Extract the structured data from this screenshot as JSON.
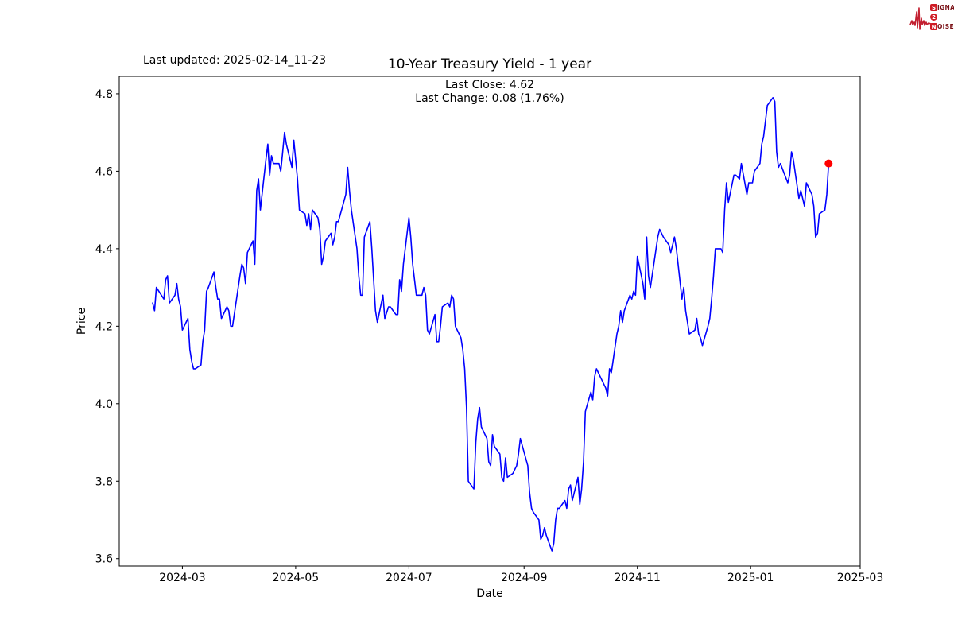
{
  "header": {
    "last_updated": "Last updated: 2025-02-14_11-23"
  },
  "logo": {
    "signal_first": "S",
    "signal_rest": "IGNAL",
    "middle": "2",
    "noise_first": "N",
    "noise_rest": "OISE",
    "waveform_icon": "ekg-heartbeat-icon",
    "waveform_color": "#c32031",
    "badge_color": "#cf1b24",
    "word_color": "#7a1116"
  },
  "chart": {
    "title": "10-Year Treasury Yield - 1 year",
    "subtitle_line1": "Last Close: 4.62",
    "subtitle_line2": "Last Change: 0.08 (1.76%)",
    "xlabel": "Date",
    "ylabel": "Price",
    "line_color": "#0000ff",
    "marker_color": "#ff0000",
    "axis_color": "#000000"
  },
  "chart_data": {
    "type": "line",
    "title": "10-Year Treasury Yield - 1 year",
    "series_name": "10-Year Treasury Yield",
    "xlabel": "Date",
    "ylabel": "Price",
    "last_close": 4.62,
    "last_change": 0.08,
    "last_change_pct": 1.76,
    "xlim": [
      "2024-01-27",
      "2025-03-01"
    ],
    "ylim": [
      3.581,
      4.845
    ],
    "grid": false,
    "x_ticks": [
      {
        "date": "2024-03-01",
        "label": "2024-03"
      },
      {
        "date": "2024-05-01",
        "label": "2024-05"
      },
      {
        "date": "2024-07-01",
        "label": "2024-07"
      },
      {
        "date": "2024-09-01",
        "label": "2024-09"
      },
      {
        "date": "2024-11-01",
        "label": "2024-11"
      },
      {
        "date": "2025-01-01",
        "label": "2025-01"
      },
      {
        "date": "2025-03-01",
        "label": "2025-03"
      }
    ],
    "y_ticks": [
      {
        "value": 3.6,
        "label": "3.6"
      },
      {
        "value": 3.8,
        "label": "3.8"
      },
      {
        "value": 4.0,
        "label": "4.0"
      },
      {
        "value": 4.2,
        "label": "4.2"
      },
      {
        "value": 4.4,
        "label": "4.4"
      },
      {
        "value": 4.6,
        "label": "4.6"
      },
      {
        "value": 4.8,
        "label": "4.8"
      }
    ],
    "points": [
      [
        "2024-02-14",
        4.26
      ],
      [
        "2024-02-15",
        4.24
      ],
      [
        "2024-02-16",
        4.3
      ],
      [
        "2024-02-20",
        4.27
      ],
      [
        "2024-02-21",
        4.32
      ],
      [
        "2024-02-22",
        4.33
      ],
      [
        "2024-02-23",
        4.26
      ],
      [
        "2024-02-26",
        4.28
      ],
      [
        "2024-02-27",
        4.31
      ],
      [
        "2024-02-28",
        4.27
      ],
      [
        "2024-02-29",
        4.25
      ],
      [
        "2024-03-01",
        4.19
      ],
      [
        "2024-03-04",
        4.22
      ],
      [
        "2024-03-05",
        4.14
      ],
      [
        "2024-03-06",
        4.11
      ],
      [
        "2024-03-07",
        4.09
      ],
      [
        "2024-03-08",
        4.09
      ],
      [
        "2024-03-11",
        4.1
      ],
      [
        "2024-03-12",
        4.16
      ],
      [
        "2024-03-13",
        4.19
      ],
      [
        "2024-03-14",
        4.29
      ],
      [
        "2024-03-15",
        4.3
      ],
      [
        "2024-03-18",
        4.34
      ],
      [
        "2024-03-19",
        4.3
      ],
      [
        "2024-03-20",
        4.27
      ],
      [
        "2024-03-21",
        4.27
      ],
      [
        "2024-03-22",
        4.22
      ],
      [
        "2024-03-25",
        4.25
      ],
      [
        "2024-03-26",
        4.24
      ],
      [
        "2024-03-27",
        4.2
      ],
      [
        "2024-03-28",
        4.2
      ],
      [
        "2024-04-01",
        4.33
      ],
      [
        "2024-04-02",
        4.36
      ],
      [
        "2024-04-03",
        4.35
      ],
      [
        "2024-04-04",
        4.31
      ],
      [
        "2024-04-05",
        4.39
      ],
      [
        "2024-04-08",
        4.42
      ],
      [
        "2024-04-09",
        4.36
      ],
      [
        "2024-04-10",
        4.55
      ],
      [
        "2024-04-11",
        4.58
      ],
      [
        "2024-04-12",
        4.5
      ],
      [
        "2024-04-15",
        4.63
      ],
      [
        "2024-04-16",
        4.67
      ],
      [
        "2024-04-17",
        4.59
      ],
      [
        "2024-04-18",
        4.64
      ],
      [
        "2024-04-19",
        4.62
      ],
      [
        "2024-04-22",
        4.62
      ],
      [
        "2024-04-23",
        4.6
      ],
      [
        "2024-04-24",
        4.65
      ],
      [
        "2024-04-25",
        4.7
      ],
      [
        "2024-04-26",
        4.67
      ],
      [
        "2024-04-29",
        4.61
      ],
      [
        "2024-04-30",
        4.68
      ],
      [
        "2024-05-01",
        4.63
      ],
      [
        "2024-05-02",
        4.58
      ],
      [
        "2024-05-03",
        4.5
      ],
      [
        "2024-05-06",
        4.49
      ],
      [
        "2024-05-07",
        4.46
      ],
      [
        "2024-05-08",
        4.49
      ],
      [
        "2024-05-09",
        4.45
      ],
      [
        "2024-05-10",
        4.5
      ],
      [
        "2024-05-13",
        4.48
      ],
      [
        "2024-05-14",
        4.45
      ],
      [
        "2024-05-15",
        4.36
      ],
      [
        "2024-05-16",
        4.38
      ],
      [
        "2024-05-17",
        4.42
      ],
      [
        "2024-05-20",
        4.44
      ],
      [
        "2024-05-21",
        4.41
      ],
      [
        "2024-05-22",
        4.43
      ],
      [
        "2024-05-23",
        4.47
      ],
      [
        "2024-05-24",
        4.47
      ],
      [
        "2024-05-28",
        4.54
      ],
      [
        "2024-05-29",
        4.61
      ],
      [
        "2024-05-30",
        4.55
      ],
      [
        "2024-05-31",
        4.5
      ],
      [
        "2024-06-03",
        4.4
      ],
      [
        "2024-06-04",
        4.33
      ],
      [
        "2024-06-05",
        4.28
      ],
      [
        "2024-06-06",
        4.28
      ],
      [
        "2024-06-07",
        4.43
      ],
      [
        "2024-06-10",
        4.47
      ],
      [
        "2024-06-11",
        4.4
      ],
      [
        "2024-06-12",
        4.32
      ],
      [
        "2024-06-13",
        4.24
      ],
      [
        "2024-06-14",
        4.21
      ],
      [
        "2024-06-17",
        4.28
      ],
      [
        "2024-06-18",
        4.22
      ],
      [
        "2024-06-20",
        4.25
      ],
      [
        "2024-06-21",
        4.25
      ],
      [
        "2024-06-24",
        4.23
      ],
      [
        "2024-06-25",
        4.23
      ],
      [
        "2024-06-26",
        4.32
      ],
      [
        "2024-06-27",
        4.29
      ],
      [
        "2024-06-28",
        4.36
      ],
      [
        "2024-07-01",
        4.48
      ],
      [
        "2024-07-02",
        4.43
      ],
      [
        "2024-07-03",
        4.36
      ],
      [
        "2024-07-05",
        4.28
      ],
      [
        "2024-07-08",
        4.28
      ],
      [
        "2024-07-09",
        4.3
      ],
      [
        "2024-07-10",
        4.28
      ],
      [
        "2024-07-11",
        4.19
      ],
      [
        "2024-07-12",
        4.18
      ],
      [
        "2024-07-15",
        4.23
      ],
      [
        "2024-07-16",
        4.16
      ],
      [
        "2024-07-17",
        4.16
      ],
      [
        "2024-07-18",
        4.2
      ],
      [
        "2024-07-19",
        4.25
      ],
      [
        "2024-07-22",
        4.26
      ],
      [
        "2024-07-23",
        4.25
      ],
      [
        "2024-07-24",
        4.28
      ],
      [
        "2024-07-25",
        4.27
      ],
      [
        "2024-07-26",
        4.2
      ],
      [
        "2024-07-29",
        4.17
      ],
      [
        "2024-07-30",
        4.14
      ],
      [
        "2024-07-31",
        4.09
      ],
      [
        "2024-08-01",
        3.99
      ],
      [
        "2024-08-02",
        3.8
      ],
      [
        "2024-08-05",
        3.78
      ],
      [
        "2024-08-06",
        3.9
      ],
      [
        "2024-08-07",
        3.96
      ],
      [
        "2024-08-08",
        3.99
      ],
      [
        "2024-08-09",
        3.94
      ],
      [
        "2024-08-12",
        3.91
      ],
      [
        "2024-08-13",
        3.85
      ],
      [
        "2024-08-14",
        3.84
      ],
      [
        "2024-08-15",
        3.92
      ],
      [
        "2024-08-16",
        3.89
      ],
      [
        "2024-08-19",
        3.87
      ],
      [
        "2024-08-20",
        3.81
      ],
      [
        "2024-08-21",
        3.8
      ],
      [
        "2024-08-22",
        3.86
      ],
      [
        "2024-08-23",
        3.81
      ],
      [
        "2024-08-26",
        3.82
      ],
      [
        "2024-08-27",
        3.83
      ],
      [
        "2024-08-28",
        3.84
      ],
      [
        "2024-08-29",
        3.87
      ],
      [
        "2024-08-30",
        3.91
      ],
      [
        "2024-09-03",
        3.84
      ],
      [
        "2024-09-04",
        3.77
      ],
      [
        "2024-09-05",
        3.73
      ],
      [
        "2024-09-06",
        3.72
      ],
      [
        "2024-09-09",
        3.7
      ],
      [
        "2024-09-10",
        3.65
      ],
      [
        "2024-09-11",
        3.66
      ],
      [
        "2024-09-12",
        3.68
      ],
      [
        "2024-09-13",
        3.66
      ],
      [
        "2024-09-16",
        3.62
      ],
      [
        "2024-09-17",
        3.64
      ],
      [
        "2024-09-18",
        3.7
      ],
      [
        "2024-09-19",
        3.73
      ],
      [
        "2024-09-20",
        3.73
      ],
      [
        "2024-09-23",
        3.75
      ],
      [
        "2024-09-24",
        3.73
      ],
      [
        "2024-09-25",
        3.78
      ],
      [
        "2024-09-26",
        3.79
      ],
      [
        "2024-09-27",
        3.75
      ],
      [
        "2024-09-30",
        3.81
      ],
      [
        "2024-10-01",
        3.74
      ],
      [
        "2024-10-02",
        3.78
      ],
      [
        "2024-10-03",
        3.85
      ],
      [
        "2024-10-04",
        3.98
      ],
      [
        "2024-10-07",
        4.03
      ],
      [
        "2024-10-08",
        4.01
      ],
      [
        "2024-10-09",
        4.07
      ],
      [
        "2024-10-10",
        4.09
      ],
      [
        "2024-10-11",
        4.08
      ],
      [
        "2024-10-15",
        4.04
      ],
      [
        "2024-10-16",
        4.02
      ],
      [
        "2024-10-17",
        4.09
      ],
      [
        "2024-10-18",
        4.08
      ],
      [
        "2024-10-21",
        4.18
      ],
      [
        "2024-10-22",
        4.2
      ],
      [
        "2024-10-23",
        4.24
      ],
      [
        "2024-10-24",
        4.21
      ],
      [
        "2024-10-25",
        4.24
      ],
      [
        "2024-10-28",
        4.28
      ],
      [
        "2024-10-29",
        4.27
      ],
      [
        "2024-10-30",
        4.29
      ],
      [
        "2024-10-31",
        4.28
      ],
      [
        "2024-11-01",
        4.38
      ],
      [
        "2024-11-04",
        4.31
      ],
      [
        "2024-11-05",
        4.27
      ],
      [
        "2024-11-06",
        4.43
      ],
      [
        "2024-11-07",
        4.33
      ],
      [
        "2024-11-08",
        4.3
      ],
      [
        "2024-11-12",
        4.43
      ],
      [
        "2024-11-13",
        4.45
      ],
      [
        "2024-11-14",
        4.44
      ],
      [
        "2024-11-15",
        4.43
      ],
      [
        "2024-11-18",
        4.41
      ],
      [
        "2024-11-19",
        4.39
      ],
      [
        "2024-11-20",
        4.41
      ],
      [
        "2024-11-21",
        4.43
      ],
      [
        "2024-11-22",
        4.4
      ],
      [
        "2024-11-25",
        4.27
      ],
      [
        "2024-11-26",
        4.3
      ],
      [
        "2024-11-27",
        4.24
      ],
      [
        "2024-11-29",
        4.18
      ],
      [
        "2024-12-02",
        4.19
      ],
      [
        "2024-12-03",
        4.22
      ],
      [
        "2024-12-04",
        4.18
      ],
      [
        "2024-12-05",
        4.17
      ],
      [
        "2024-12-06",
        4.15
      ],
      [
        "2024-12-09",
        4.2
      ],
      [
        "2024-12-10",
        4.22
      ],
      [
        "2024-12-11",
        4.27
      ],
      [
        "2024-12-12",
        4.33
      ],
      [
        "2024-12-13",
        4.4
      ],
      [
        "2024-12-16",
        4.4
      ],
      [
        "2024-12-17",
        4.39
      ],
      [
        "2024-12-18",
        4.5
      ],
      [
        "2024-12-19",
        4.57
      ],
      [
        "2024-12-20",
        4.52
      ],
      [
        "2024-12-23",
        4.59
      ],
      [
        "2024-12-24",
        4.59
      ],
      [
        "2024-12-26",
        4.58
      ],
      [
        "2024-12-27",
        4.62
      ],
      [
        "2024-12-30",
        4.54
      ],
      [
        "2024-12-31",
        4.57
      ],
      [
        "2025-01-02",
        4.57
      ],
      [
        "2025-01-03",
        4.6
      ],
      [
        "2025-01-06",
        4.62
      ],
      [
        "2025-01-07",
        4.67
      ],
      [
        "2025-01-08",
        4.69
      ],
      [
        "2025-01-10",
        4.77
      ],
      [
        "2025-01-13",
        4.79
      ],
      [
        "2025-01-14",
        4.78
      ],
      [
        "2025-01-15",
        4.65
      ],
      [
        "2025-01-16",
        4.61
      ],
      [
        "2025-01-17",
        4.62
      ],
      [
        "2025-01-21",
        4.57
      ],
      [
        "2025-01-22",
        4.59
      ],
      [
        "2025-01-23",
        4.65
      ],
      [
        "2025-01-24",
        4.63
      ],
      [
        "2025-01-27",
        4.53
      ],
      [
        "2025-01-28",
        4.55
      ],
      [
        "2025-01-29",
        4.53
      ],
      [
        "2025-01-30",
        4.51
      ],
      [
        "2025-01-31",
        4.57
      ],
      [
        "2025-02-03",
        4.54
      ],
      [
        "2025-02-04",
        4.51
      ],
      [
        "2025-02-05",
        4.43
      ],
      [
        "2025-02-06",
        4.44
      ],
      [
        "2025-02-07",
        4.49
      ],
      [
        "2025-02-10",
        4.5
      ],
      [
        "2025-02-11",
        4.54
      ],
      [
        "2025-02-12",
        4.62
      ]
    ]
  }
}
